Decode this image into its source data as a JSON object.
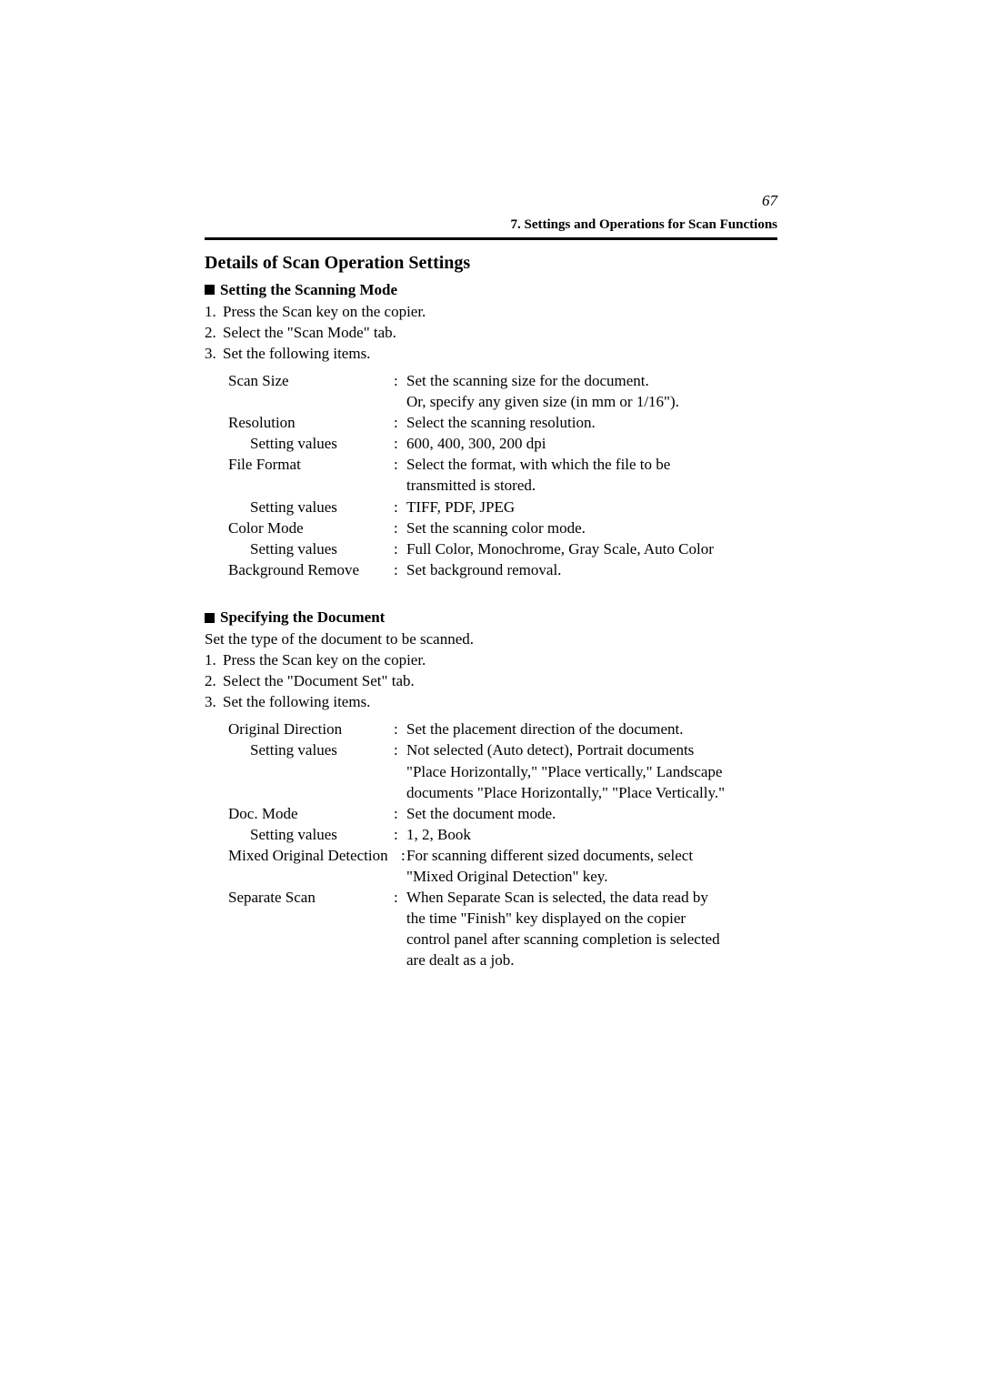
{
  "page": {
    "number": "67",
    "headerTitle": "7. Settings and Operations for Scan Functions",
    "mainHeading": "Details of Scan Operation Settings"
  },
  "section1": {
    "heading": "Setting the Scanning Mode",
    "steps": [
      {
        "num": "1.",
        "text": "Press the Scan key on the copier."
      },
      {
        "num": "2.",
        "text": "Select the \"Scan Mode\" tab."
      },
      {
        "num": "3.",
        "text": "Set the following items."
      }
    ],
    "settings": [
      {
        "label": "Scan Size",
        "indent": false,
        "value": "Set the scanning size for the document."
      },
      {
        "label": "",
        "indent": false,
        "value": "Or, specify any given size (in mm or 1/16\")."
      },
      {
        "label": "Resolution",
        "indent": false,
        "value": "Select the scanning resolution."
      },
      {
        "label": "Setting values",
        "indent": true,
        "value": "600, 400, 300, 200 dpi"
      },
      {
        "label": "File Format",
        "indent": false,
        "value": "Select the format, with which the file to be"
      },
      {
        "label": "",
        "indent": false,
        "value": "transmitted is stored."
      },
      {
        "label": "Setting values",
        "indent": true,
        "value": "TIFF, PDF, JPEG"
      },
      {
        "label": "Color Mode",
        "indent": false,
        "value": "Set the scanning color mode."
      },
      {
        "label": "Setting values",
        "indent": true,
        "value": "Full Color, Monochrome, Gray Scale, Auto Color"
      },
      {
        "label": "Background Remove",
        "indent": false,
        "value": "Set background removal."
      }
    ]
  },
  "section2": {
    "heading": "Specifying the Document",
    "intro": "Set the type of the document to be scanned.",
    "steps": [
      {
        "num": "1.",
        "text": "Press the Scan key on the copier."
      },
      {
        "num": "2.",
        "text": "Select the \"Document Set\" tab."
      },
      {
        "num": "3.",
        "text": "Set the following items."
      }
    ],
    "settings": [
      {
        "label": "Original Direction",
        "indent": false,
        "value": "Set the placement direction of the document."
      },
      {
        "label": "Setting values",
        "indent": true,
        "value": "Not selected (Auto detect), Portrait documents"
      },
      {
        "label": "",
        "indent": false,
        "value": "\"Place Horizontally,\" \"Place vertically,\" Landscape"
      },
      {
        "label": "",
        "indent": false,
        "value": "documents \"Place Horizontally,\" \"Place Vertically.\""
      },
      {
        "label": "Doc. Mode",
        "indent": false,
        "value": "Set the document mode."
      },
      {
        "label": "Setting values",
        "indent": true,
        "value": "1, 2, Book"
      },
      {
        "label": "Mixed Original Detection",
        "indent": false,
        "value": "For scanning different sized documents, select",
        "wide": true
      },
      {
        "label": "",
        "indent": false,
        "value": "\"Mixed Original Detection\" key."
      },
      {
        "label": "Separate Scan",
        "indent": false,
        "value": "When Separate Scan is selected, the data read by"
      },
      {
        "label": "",
        "indent": false,
        "value": "the time \"Finish\" key displayed on the copier"
      },
      {
        "label": "",
        "indent": false,
        "value": "control panel after scanning completion is selected"
      },
      {
        "label": "",
        "indent": false,
        "value": "are dealt as a job."
      }
    ]
  }
}
